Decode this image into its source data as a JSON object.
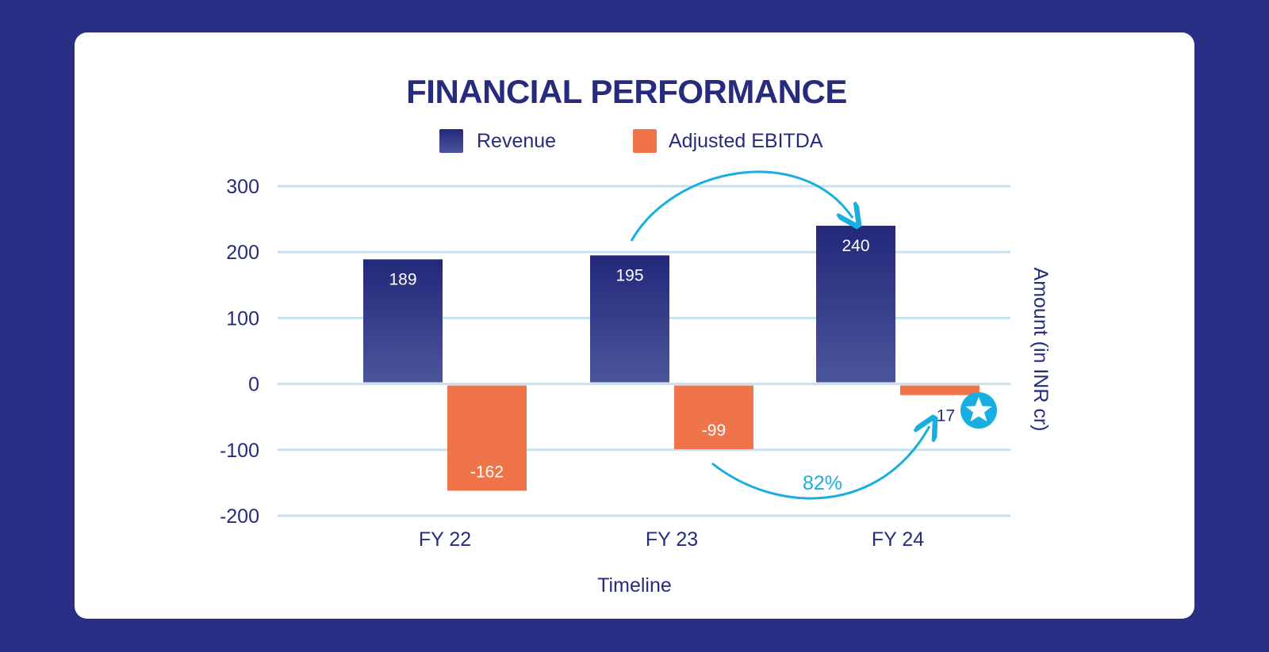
{
  "chart_data": {
    "type": "bar",
    "title": "FINANCIAL PERFORMANCE",
    "categories": [
      "FY 22",
      "FY 23",
      "FY 24"
    ],
    "series": [
      {
        "name": "Revenue",
        "values": [
          189,
          195,
          240
        ],
        "color": "#262b7d"
      },
      {
        "name": "Adjusted EBITDA",
        "values": [
          -162,
          -99,
          -17
        ],
        "color": "#f0744a"
      }
    ],
    "xlabel": "Timeline",
    "ylabel": "Amount (in INR cr)",
    "ylim": [
      -200,
      300
    ],
    "yticks": [
      "300",
      "200",
      "100",
      "0",
      "-100",
      "-200"
    ],
    "grid": true,
    "legend": "top-center",
    "data_labels": {
      "Revenue": [
        "189",
        "195",
        "240"
      ],
      "Adjusted EBITDA": [
        "-162",
        "-99",
        "-17"
      ]
    },
    "annotations": [
      {
        "text": "82%",
        "meaning": ""
      }
    ],
    "colors": {
      "background": "#2a2f86",
      "text": "#262b7d",
      "grid": "#c7e2ef",
      "arrow": "#18aee0"
    }
  }
}
